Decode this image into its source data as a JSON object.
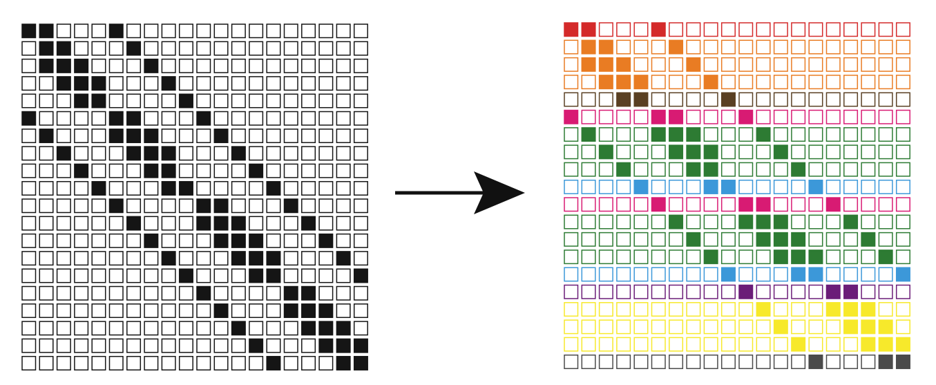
{
  "colors": {
    "black": "#151515",
    "red": "#d42a2a",
    "orange": "#e97c23",
    "brown": "#5a4023",
    "magenta": "#d81b73",
    "green": "#2d7b33",
    "blue": "#3c98d9",
    "purple": "#6b1d78",
    "yellow": "#f7e92b",
    "gray": "#4a4a4a",
    "arrow": "#111111"
  },
  "row_groups": [
    "red",
    "orange",
    "orange",
    "orange",
    "brown",
    "magenta",
    "green",
    "green",
    "green",
    "blue",
    "magenta",
    "green",
    "green",
    "green",
    "blue",
    "purple",
    "yellow",
    "yellow",
    "yellow",
    "gray"
  ],
  "matrix": [
    "11000100000000000000",
    "01100010000000000000",
    "01110001000000000000",
    "00111000100000000000",
    "00011000010000000000",
    "10000110001000000000",
    "01000111000100000000",
    "00100011100010000000",
    "00010001100001000000",
    "00001000110000100000",
    "00000100001100010000",
    "00000010001110001000",
    "00000001000111000100",
    "00000000100011100010",
    "00000000010001100001",
    "00000000001000011000",
    "00000000000100011100",
    "00000000000010001110",
    "00000000000001000111",
    "00000000000000100011"
  ]
}
